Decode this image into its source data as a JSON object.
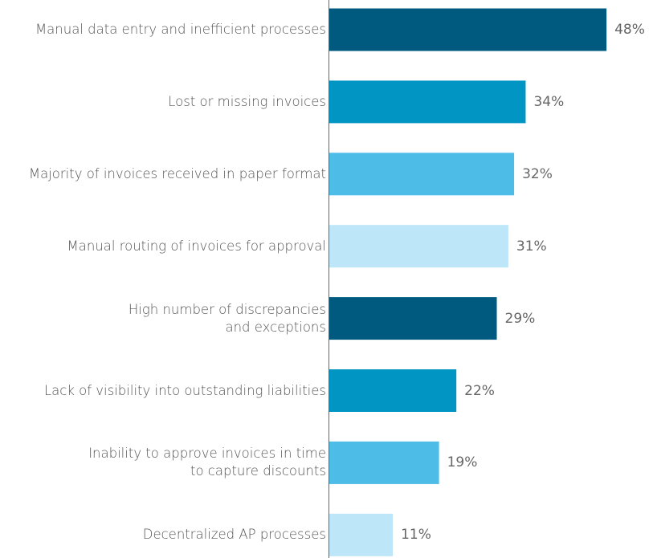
{
  "chart_data": {
    "type": "bar",
    "orientation": "horizontal",
    "categories": [
      "Manual data entry and inefficient processes",
      "Lost or missing invoices",
      "Majority of invoices received in paper format",
      "Manual routing of invoices for approval",
      "High number of discrepancies\nand exceptions",
      "Lack of visibility into outstanding liabilities",
      "Inability to approve invoices in time\nto capture discounts",
      "Decentralized AP processes"
    ],
    "values": [
      48,
      34,
      32,
      31,
      29,
      22,
      19,
      11
    ],
    "value_labels": [
      "48%",
      "34%",
      "32%",
      "31%",
      "29%",
      "22%",
      "19%",
      "11%"
    ],
    "colors": [
      "#005a80",
      "#0095c3",
      "#4dbce6",
      "#bde6f9",
      "#005a80",
      "#0095c3",
      "#4dbce6",
      "#bde6f9"
    ]
  }
}
